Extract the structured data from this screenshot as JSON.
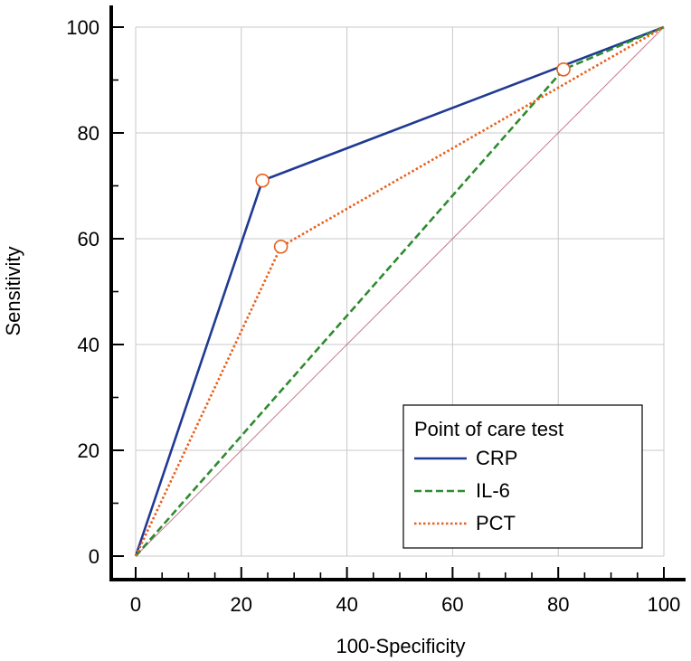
{
  "chart_data": {
    "type": "line",
    "xlabel": "100-Specificity",
    "ylabel": "Sensitivity",
    "xlim": [
      0,
      100
    ],
    "ylim": [
      0,
      100
    ],
    "x_ticks": [
      0,
      20,
      40,
      60,
      80,
      100
    ],
    "y_ticks": [
      0,
      20,
      40,
      60,
      80,
      100
    ],
    "grid": true,
    "reference_line": {
      "x": [
        0,
        100
      ],
      "y": [
        0,
        100
      ],
      "color": "#c47a8a"
    },
    "legend": {
      "title": "Point of care test",
      "position": "bottom-right"
    },
    "series": [
      {
        "name": "CRP",
        "color": "#1f3a93",
        "style": "solid",
        "x": [
          0,
          24,
          100
        ],
        "y": [
          0,
          71,
          100
        ]
      },
      {
        "name": "IL-6",
        "color": "#2e8b2e",
        "style": "dashed",
        "x": [
          0,
          81,
          100
        ],
        "y": [
          0,
          92,
          100
        ]
      },
      {
        "name": "PCT",
        "color": "#e8601c",
        "style": "dotted",
        "x": [
          0,
          27.5,
          100
        ],
        "y": [
          0,
          58.5,
          100
        ]
      }
    ],
    "markers": [
      {
        "x": 24,
        "y": 71
      },
      {
        "x": 27.5,
        "y": 58.5
      },
      {
        "x": 81,
        "y": 92
      }
    ],
    "marker_color": "#e8601c"
  }
}
